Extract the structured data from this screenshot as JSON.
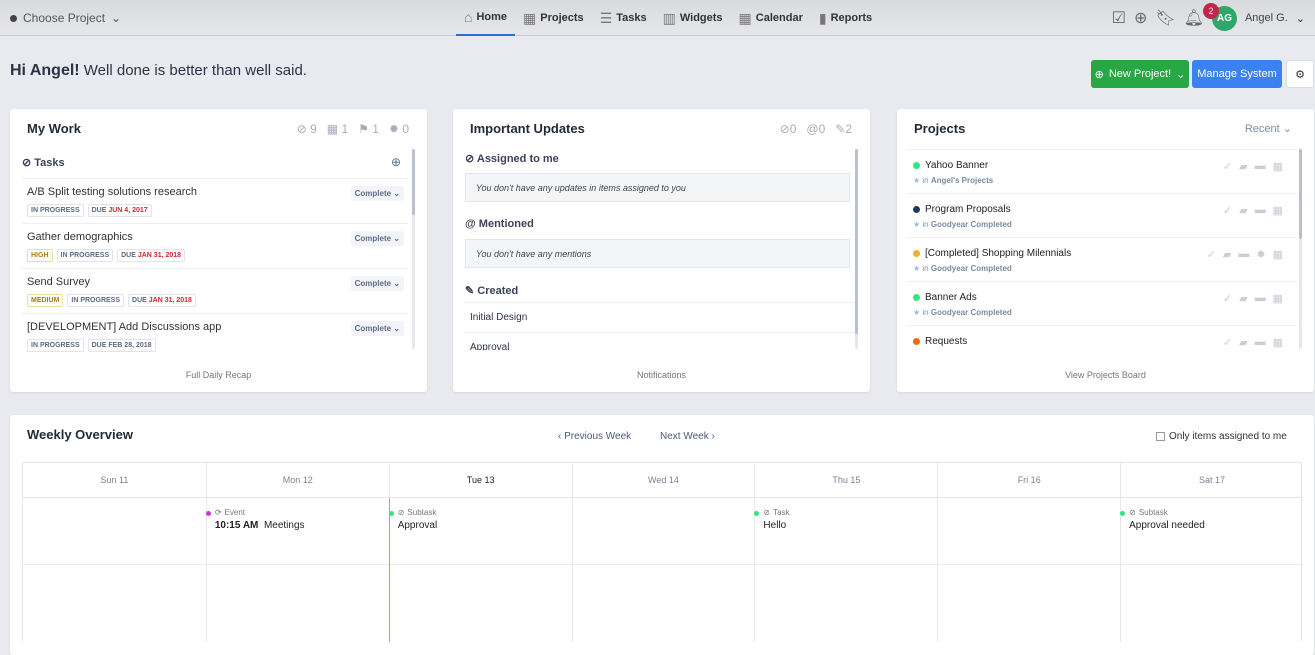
{
  "topbar": {
    "project": "Choose Project",
    "nav": [
      {
        "label": "Home",
        "icon": "home-icon"
      },
      {
        "label": "Projects",
        "icon": "grid-icon"
      },
      {
        "label": "Tasks",
        "icon": "list-icon"
      },
      {
        "label": "Widgets",
        "icon": "widgets-icon"
      },
      {
        "label": "Calendar",
        "icon": "calendar-icon"
      },
      {
        "label": "Reports",
        "icon": "bar-chart-icon"
      }
    ],
    "notifications": "2",
    "avatar": "AG",
    "user": "Angel G."
  },
  "greeting": {
    "name": "Hi Angel!",
    "motto": "Well done is better than well said."
  },
  "buttons": {
    "new_project": "New Project!",
    "manage": "Manage System"
  },
  "mywork": {
    "title": "My Work",
    "stats": [
      "9",
      "1",
      "1",
      "0"
    ],
    "section": "Tasks",
    "complete": "Complete",
    "footer": "Full Daily Recap",
    "tasks": [
      {
        "name": "A/B Split testing solutions research",
        "priority": "",
        "status": "IN PROGRESS",
        "due": "JUN 4, 2017",
        "overdue": true
      },
      {
        "name": "Gather demographics",
        "priority": "HIGH",
        "status": "IN PROGRESS",
        "due": "JAN 31, 2018",
        "overdue": true
      },
      {
        "name": "Send Survey",
        "priority": "MEDIUM",
        "status": "IN PROGRESS",
        "due": "JAN 31, 2018",
        "overdue": true
      },
      {
        "name": "[DEVELOPMENT] Add Discussions app",
        "priority": "",
        "status": "IN PROGRESS",
        "due": "FEB 28, 2018",
        "overdue": false
      }
    ],
    "due_label": "DUE"
  },
  "updates": {
    "title": "Important Updates",
    "stats": [
      "0",
      "0",
      "2"
    ],
    "assigned": "Assigned to me",
    "assigned_empty": "You don't have any updates in items assigned to you",
    "mentioned": "Mentioned",
    "mentioned_empty": "You don't have any mentions",
    "created": "Created",
    "created_items": [
      "Initial Design",
      "Approval"
    ],
    "footer": "Notifications"
  },
  "projects": {
    "title": "Projects",
    "sort": "Recent",
    "footer": "View Projects Board",
    "in": "in",
    "items": [
      {
        "name": "Yahoo Banner",
        "color": "#2ee87f",
        "folder": "Angel's Projects"
      },
      {
        "name": "Program Proposals",
        "color": "#1b3a63",
        "folder": "Goodyear Completed"
      },
      {
        "name": "[Completed] Shopping Milennials",
        "color": "#e8b33a",
        "folder": "Goodyear Completed"
      },
      {
        "name": "Banner Ads",
        "color": "#2ee87f",
        "folder": "Goodyear Completed"
      },
      {
        "name": "Requests",
        "color": "#ec6a12",
        "folder": ""
      }
    ]
  },
  "weekly": {
    "title": "Weekly Overview",
    "prev": "Previous Week",
    "next": "Next Week",
    "only_mine": "Only items assigned to me",
    "days": [
      "Sun 11",
      "Mon 12",
      "Tue 13",
      "Wed 14",
      "Thu 15",
      "Fri 16",
      "Sat 17"
    ],
    "events": [
      {
        "day": 1,
        "kind": "Event",
        "time": "10:15 AM",
        "title": "Meetings",
        "color": "#c63bd4"
      },
      {
        "day": 2,
        "kind": "Subtask",
        "time": "",
        "title": "Approval",
        "color": "#2ee87f"
      },
      {
        "day": 4,
        "kind": "Task",
        "time": "",
        "title": "Hello",
        "color": "#2ee87f"
      },
      {
        "day": 6,
        "kind": "Subtask",
        "time": "",
        "title": "Approval needed",
        "color": "#2ee87f"
      }
    ]
  },
  "colors": {
    "green": "#28a745",
    "blue": "#3b82f0",
    "today": "#7fb3c9"
  }
}
